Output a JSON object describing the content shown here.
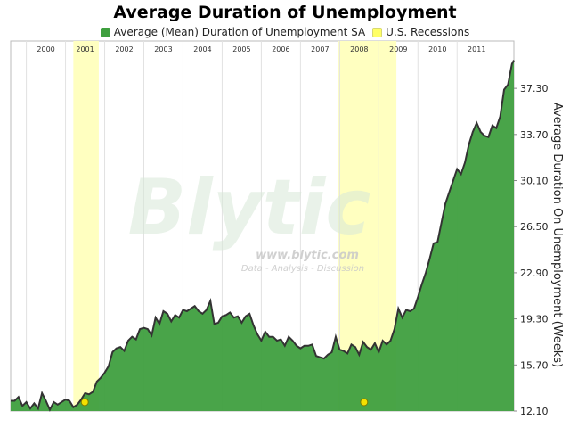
{
  "chart_data": {
    "type": "area",
    "title": "Average Duration of Unemployment",
    "ylabel": "Average Duration On Unemployment (Weeks)",
    "xlabel": "",
    "ylim": [
      12.1,
      41.0
    ],
    "yticks": [
      12.1,
      15.7,
      19.3,
      22.9,
      26.5,
      30.1,
      33.7,
      37.3
    ],
    "ytick_labels": [
      "12.10",
      "15.70",
      "19.30",
      "22.90",
      "26.50",
      "30.10",
      "33.70",
      "37.30"
    ],
    "xlim": [
      1999.6,
      2012.45
    ],
    "year_labels": [
      "2000",
      "2001",
      "2002",
      "2003",
      "2004",
      "2005",
      "2006",
      "2007",
      "2008",
      "2009",
      "2010",
      "2011"
    ],
    "year_starts": [
      2000,
      2001,
      2002,
      2003,
      2004,
      2005,
      2006,
      2007,
      2008,
      2009,
      2010,
      2011
    ],
    "grid": true,
    "legend_position": "top",
    "series": [
      {
        "name": "Average (Mean) Duration of Unemployment SA",
        "color": "#3f9f3f",
        "line_color": "#333333",
        "points": [
          [
            1999.6,
            12.9
          ],
          [
            1999.7,
            12.9
          ],
          [
            1999.8,
            13.2
          ],
          [
            1999.9,
            12.5
          ],
          [
            2000.0,
            12.8
          ],
          [
            2000.1,
            12.3
          ],
          [
            2000.2,
            12.7
          ],
          [
            2000.3,
            12.3
          ],
          [
            2000.4,
            13.5
          ],
          [
            2000.5,
            12.9
          ],
          [
            2000.6,
            12.2
          ],
          [
            2000.7,
            12.8
          ],
          [
            2000.8,
            12.6
          ],
          [
            2000.9,
            12.8
          ],
          [
            2001.0,
            13.0
          ],
          [
            2001.1,
            12.9
          ],
          [
            2001.2,
            12.4
          ],
          [
            2001.3,
            12.6
          ],
          [
            2001.4,
            13.0
          ],
          [
            2001.5,
            13.5
          ],
          [
            2001.6,
            13.4
          ],
          [
            2001.7,
            13.6
          ],
          [
            2001.8,
            14.4
          ],
          [
            2001.9,
            14.7
          ],
          [
            2002.0,
            15.1
          ],
          [
            2002.1,
            15.6
          ],
          [
            2002.2,
            16.7
          ],
          [
            2002.3,
            17.0
          ],
          [
            2002.4,
            17.1
          ],
          [
            2002.5,
            16.8
          ],
          [
            2002.6,
            17.6
          ],
          [
            2002.7,
            17.9
          ],
          [
            2002.8,
            17.7
          ],
          [
            2002.9,
            18.5
          ],
          [
            2003.0,
            18.6
          ],
          [
            2003.1,
            18.5
          ],
          [
            2003.2,
            18.0
          ],
          [
            2003.3,
            19.4
          ],
          [
            2003.4,
            18.9
          ],
          [
            2003.5,
            19.9
          ],
          [
            2003.6,
            19.7
          ],
          [
            2003.7,
            19.1
          ],
          [
            2003.8,
            19.6
          ],
          [
            2003.9,
            19.4
          ],
          [
            2004.0,
            20.0
          ],
          [
            2004.1,
            19.9
          ],
          [
            2004.2,
            20.1
          ],
          [
            2004.3,
            20.3
          ],
          [
            2004.4,
            19.9
          ],
          [
            2004.5,
            19.7
          ],
          [
            2004.6,
            20.0
          ],
          [
            2004.7,
            20.7
          ],
          [
            2004.8,
            18.9
          ],
          [
            2004.9,
            19.0
          ],
          [
            2005.0,
            19.5
          ],
          [
            2005.1,
            19.6
          ],
          [
            2005.2,
            19.8
          ],
          [
            2005.3,
            19.4
          ],
          [
            2005.4,
            19.5
          ],
          [
            2005.5,
            19.0
          ],
          [
            2005.6,
            19.5
          ],
          [
            2005.7,
            19.7
          ],
          [
            2005.8,
            18.8
          ],
          [
            2005.9,
            18.1
          ],
          [
            2006.0,
            17.6
          ],
          [
            2006.1,
            18.3
          ],
          [
            2006.2,
            17.9
          ],
          [
            2006.3,
            17.9
          ],
          [
            2006.4,
            17.6
          ],
          [
            2006.5,
            17.7
          ],
          [
            2006.6,
            17.2
          ],
          [
            2006.7,
            17.9
          ],
          [
            2006.8,
            17.6
          ],
          [
            2006.9,
            17.2
          ],
          [
            2007.0,
            17.0
          ],
          [
            2007.1,
            17.2
          ],
          [
            2007.2,
            17.2
          ],
          [
            2007.3,
            17.3
          ],
          [
            2007.4,
            16.4
          ],
          [
            2007.5,
            16.3
          ],
          [
            2007.6,
            16.2
          ],
          [
            2007.7,
            16.5
          ],
          [
            2007.8,
            16.7
          ],
          [
            2007.9,
            17.9
          ],
          [
            2008.0,
            16.9
          ],
          [
            2008.1,
            16.8
          ],
          [
            2008.2,
            16.6
          ],
          [
            2008.3,
            17.3
          ],
          [
            2008.4,
            17.1
          ],
          [
            2008.5,
            16.5
          ],
          [
            2008.6,
            17.5
          ],
          [
            2008.7,
            17.1
          ],
          [
            2008.8,
            16.9
          ],
          [
            2008.9,
            17.4
          ],
          [
            2009.0,
            16.7
          ],
          [
            2009.1,
            17.6
          ],
          [
            2009.2,
            17.3
          ],
          [
            2009.3,
            17.6
          ],
          [
            2009.4,
            18.5
          ],
          [
            2009.5,
            20.1
          ],
          [
            2009.6,
            19.4
          ],
          [
            2009.7,
            20.0
          ],
          [
            2009.8,
            19.9
          ],
          [
            2009.9,
            20.1
          ],
          [
            2010.0,
            21.0
          ],
          [
            2010.1,
            22.0
          ],
          [
            2010.2,
            22.9
          ],
          [
            2010.3,
            24.0
          ],
          [
            2010.4,
            25.2
          ],
          [
            2010.5,
            25.3
          ],
          [
            2010.6,
            26.8
          ],
          [
            2010.7,
            28.3
          ],
          [
            2010.8,
            29.2
          ],
          [
            2010.9,
            30.1
          ],
          [
            2011.0,
            31.0
          ],
          [
            2011.1,
            30.6
          ],
          [
            2011.2,
            31.5
          ],
          [
            2011.3,
            32.9
          ],
          [
            2011.4,
            33.9
          ],
          [
            2011.5,
            34.6
          ],
          [
            2011.6,
            33.9
          ],
          [
            2011.7,
            33.6
          ],
          [
            2011.8,
            33.5
          ],
          [
            2011.9,
            34.4
          ],
          [
            2012.0,
            34.2
          ],
          [
            2012.1,
            35.1
          ],
          [
            2012.2,
            37.2
          ],
          [
            2012.3,
            37.6
          ],
          [
            2012.4,
            39.2
          ],
          [
            2012.45,
            39.5
          ]
        ]
      },
      {
        "name": "U.S. Recessions",
        "color": "#ffffc0",
        "periods": [
          [
            2001.2,
            2001.85
          ],
          [
            2007.95,
            2009.45
          ]
        ]
      }
    ]
  },
  "watermark": {
    "brand": "Blytic",
    "url": "www.blytic.com",
    "tagline": "Data - Analysis - Discussion"
  }
}
